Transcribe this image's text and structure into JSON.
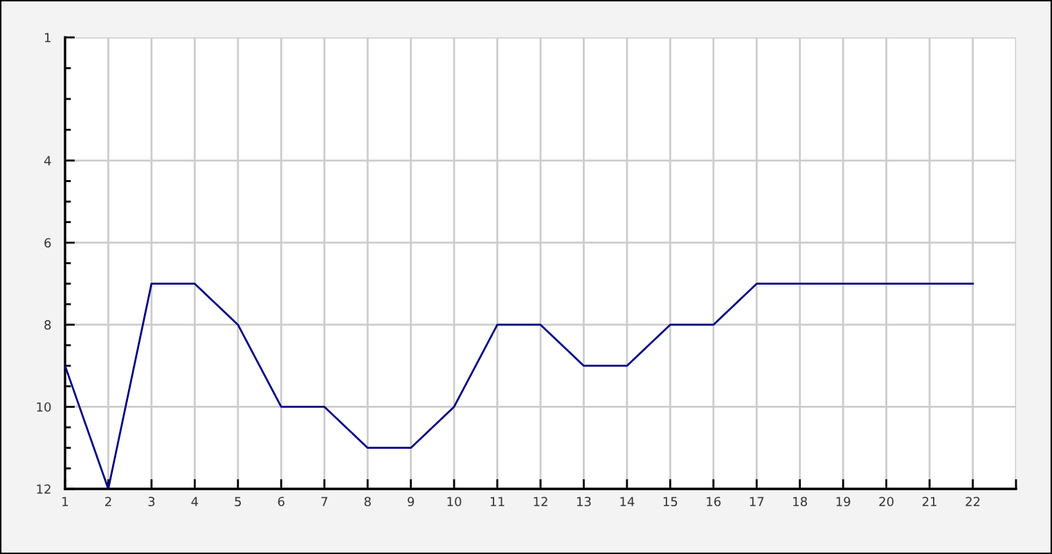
{
  "chart_data": {
    "type": "line",
    "x": [
      1,
      2,
      3,
      4,
      5,
      6,
      7,
      8,
      9,
      10,
      11,
      12,
      13,
      14,
      15,
      16,
      17,
      18,
      19,
      20,
      21,
      22
    ],
    "series": [
      {
        "color": "#000080",
        "values": [
          9,
          12,
          7,
          7,
          8,
          10,
          10,
          11,
          11,
          10,
          8,
          8,
          9,
          9,
          8,
          8,
          7,
          7,
          7,
          7,
          7,
          7
        ]
      }
    ],
    "xlim": [
      1,
      23
    ],
    "xticks": [
      1,
      2,
      3,
      4,
      5,
      6,
      7,
      8,
      9,
      10,
      11,
      12,
      13,
      14,
      15,
      16,
      17,
      18,
      19,
      20,
      21,
      22,
      {
        "value": 23,
        "label": null
      }
    ],
    "ylim": [
      12,
      1
    ],
    "yticks": [
      1,
      4,
      6,
      8,
      10,
      12
    ],
    "grid": true,
    "marker": "none",
    "line_style": "solid"
  }
}
